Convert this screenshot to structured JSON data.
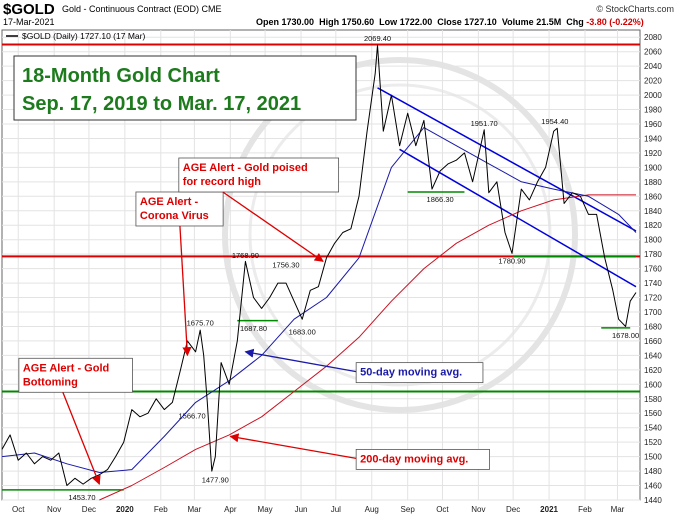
{
  "header": {
    "symbol": "$GOLD",
    "name": "Gold - Continuous Contract (EOD) CME",
    "date": "17-Mar-2021",
    "credit": "© StockCharts.com",
    "open_label": "Open",
    "open": "1730.00",
    "high_label": "High",
    "high": "1750.60",
    "low_label": "Low",
    "low": "1722.00",
    "close_label": "Close",
    "close": "1727.10",
    "volume_label": "Volume",
    "volume": "21.5M",
    "chg_label": "Chg",
    "chg": "-3.80 (-0.22%)"
  },
  "chart_data": {
    "type": "line",
    "legend_text": "$GOLD (Daily) 1727.10 (17 Mar)",
    "title": [
      "18-Month Gold Chart",
      "Sep. 17, 2019 to Mar. 17, 2021"
    ],
    "x_ticks": [
      "Oct",
      "Nov",
      "Dec",
      "2020",
      "Feb",
      "Mar",
      "Apr",
      "May",
      "Jun",
      "Jul",
      "Aug",
      "Sep",
      "Oct",
      "Nov",
      "Dec",
      "2021",
      "Feb",
      "Mar"
    ],
    "ylim": [
      1440,
      2090
    ],
    "y_ticks": [
      1440,
      1460,
      1480,
      1500,
      1520,
      1540,
      1560,
      1580,
      1600,
      1620,
      1640,
      1660,
      1680,
      1700,
      1720,
      1740,
      1760,
      1780,
      1800,
      1820,
      1840,
      1860,
      1880,
      1900,
      1920,
      1940,
      1960,
      1980,
      2000,
      2020,
      2040,
      2060,
      2080
    ],
    "colors": {
      "price": "#000000",
      "ma50": "#1a1aa8",
      "ma200": "#cc1122",
      "resistance": "#dd0000",
      "support": "#008800",
      "channel": "#0000dd",
      "annotation": "#dd0000"
    },
    "price": {
      "name": "$GOLD (Daily)",
      "x": [
        "2019-09-17",
        "2019-09-24",
        "2019-10-01",
        "2019-10-08",
        "2019-10-15",
        "2019-10-22",
        "2019-10-29",
        "2019-11-05",
        "2019-11-12",
        "2019-11-19",
        "2019-11-26",
        "2019-12-03",
        "2019-12-10",
        "2019-12-17",
        "2019-12-24",
        "2019-12-31",
        "2020-01-07",
        "2020-01-14",
        "2020-01-21",
        "2020-01-28",
        "2020-02-04",
        "2020-02-11",
        "2020-02-18",
        "2020-02-24",
        "2020-03-02",
        "2020-03-06",
        "2020-03-09",
        "2020-03-12",
        "2020-03-16",
        "2020-03-19",
        "2020-03-24",
        "2020-03-31",
        "2020-04-07",
        "2020-04-14",
        "2020-04-21",
        "2020-04-28",
        "2020-05-05",
        "2020-05-12",
        "2020-05-19",
        "2020-05-26",
        "2020-06-02",
        "2020-06-09",
        "2020-06-16",
        "2020-06-23",
        "2020-06-30",
        "2020-07-07",
        "2020-07-14",
        "2020-07-21",
        "2020-07-28",
        "2020-08-04",
        "2020-08-06",
        "2020-08-11",
        "2020-08-18",
        "2020-08-25",
        "2020-09-01",
        "2020-09-08",
        "2020-09-15",
        "2020-09-22",
        "2020-09-29",
        "2020-10-06",
        "2020-10-13",
        "2020-10-20",
        "2020-10-27",
        "2020-11-03",
        "2020-11-06",
        "2020-11-10",
        "2020-11-17",
        "2020-11-24",
        "2020-11-30",
        "2020-12-08",
        "2020-12-15",
        "2020-12-22",
        "2020-12-29",
        "2021-01-05",
        "2021-01-08",
        "2021-01-14",
        "2021-01-21",
        "2021-01-28",
        "2021-02-04",
        "2021-02-11",
        "2021-02-18",
        "2021-02-25",
        "2021-03-02",
        "2021-03-08",
        "2021-03-12",
        "2021-03-17"
      ],
      "values": [
        1510,
        1530,
        1495,
        1505,
        1490,
        1500,
        1495,
        1505,
        1460,
        1470,
        1462,
        1470,
        1475,
        1482,
        1500,
        1520,
        1565,
        1555,
        1560,
        1580,
        1565,
        1575,
        1620,
        1660,
        1645,
        1675,
        1640,
        1577,
        1480,
        1500,
        1630,
        1600,
        1660,
        1770,
        1720,
        1705,
        1720,
        1740,
        1740,
        1715,
        1690,
        1730,
        1735,
        1775,
        1795,
        1810,
        1815,
        1860,
        1950,
        2030,
        2069,
        1950,
        2000,
        1930,
        1975,
        1930,
        1965,
        1870,
        1895,
        1905,
        1910,
        1920,
        1880,
        1930,
        1952,
        1865,
        1880,
        1810,
        1781,
        1870,
        1855,
        1880,
        1900,
        1950,
        1954,
        1850,
        1865,
        1860,
        1835,
        1835,
        1775,
        1730,
        1690,
        1680,
        1715,
        1727
      ]
    },
    "ma50": {
      "name": "50-day moving avg.",
      "x": [
        "2019-09-17",
        "2019-10-15",
        "2019-11-12",
        "2019-12-10",
        "2020-01-07",
        "2020-02-04",
        "2020-03-02",
        "2020-03-31",
        "2020-04-28",
        "2020-05-26",
        "2020-06-23",
        "2020-07-21",
        "2020-08-18",
        "2020-09-15",
        "2020-10-13",
        "2020-11-10",
        "2020-12-08",
        "2021-01-05",
        "2021-02-04",
        "2021-03-02",
        "2021-03-17"
      ],
      "values": [
        1500,
        1505,
        1490,
        1478,
        1482,
        1528,
        1575,
        1605,
        1640,
        1690,
        1720,
        1775,
        1900,
        1955,
        1930,
        1905,
        1880,
        1870,
        1860,
        1835,
        1810
      ]
    },
    "ma200": {
      "name": "200-day moving avg.",
      "x": [
        "2019-12-10",
        "2020-01-07",
        "2020-02-04",
        "2020-03-02",
        "2020-03-31",
        "2020-04-28",
        "2020-05-26",
        "2020-06-23",
        "2020-07-21",
        "2020-08-18",
        "2020-09-15",
        "2020-10-13",
        "2020-11-10",
        "2020-12-08",
        "2021-01-05",
        "2021-02-04",
        "2021-03-02",
        "2021-03-17"
      ],
      "values": [
        1440,
        1460,
        1485,
        1510,
        1530,
        1555,
        1590,
        1625,
        1665,
        1715,
        1760,
        1795,
        1820,
        1840,
        1855,
        1862,
        1862,
        1862
      ]
    },
    "h_lines": [
      {
        "name": "resistance-2080",
        "value": 2070,
        "color": "#dd0000"
      },
      {
        "name": "resistance-1775",
        "value": 1777,
        "color": "#dd0000"
      },
      {
        "name": "support-1777",
        "value": 1777,
        "color": "#008800",
        "x_start": "2020-12-01",
        "x_end": "2021-03-17"
      },
      {
        "name": "support-1590",
        "value": 1590,
        "color": "#008800"
      }
    ],
    "support_segments": [
      {
        "value": 1454,
        "x1": "2019-09-17",
        "x2": "2019-12-31"
      },
      {
        "value": 1688,
        "x1": "2020-04-07",
        "x2": "2020-05-12"
      },
      {
        "value": 1866,
        "x1": "2020-09-01",
        "x2": "2020-10-20"
      },
      {
        "value": 1678,
        "x1": "2021-02-15",
        "x2": "2021-03-12"
      }
    ],
    "channel": [
      {
        "x1": "2020-08-06",
        "y1": 2010,
        "x2": "2021-03-17",
        "y2": 1812
      },
      {
        "x1": "2020-08-25",
        "y1": 1925,
        "x2": "2021-03-17",
        "y2": 1735
      }
    ],
    "value_labels": [
      {
        "text": "1453.70",
        "x": "2019-11-25",
        "y": 1453.7,
        "pos": "below"
      },
      {
        "text": "1566.70",
        "x": "2020-02-28",
        "y": 1566.7,
        "pos": "below"
      },
      {
        "text": "1675.70",
        "x": "2020-03-06",
        "y": 1675.7,
        "pos": "above"
      },
      {
        "text": "1477.90",
        "x": "2020-03-19",
        "y": 1477.9,
        "pos": "below"
      },
      {
        "text": "1768.90",
        "x": "2020-04-14",
        "y": 1768.9,
        "pos": "above"
      },
      {
        "text": "1687.80",
        "x": "2020-04-21",
        "y": 1687.8,
        "pos": "below"
      },
      {
        "text": "1756.30",
        "x": "2020-05-19",
        "y": 1756.3,
        "pos": "above"
      },
      {
        "text": "1683.00",
        "x": "2020-06-02",
        "y": 1683.0,
        "pos": "below"
      },
      {
        "text": "2069.40",
        "x": "2020-08-06",
        "y": 2069.4,
        "pos": "above"
      },
      {
        "text": "1866.30",
        "x": "2020-09-29",
        "y": 1866.3,
        "pos": "below"
      },
      {
        "text": "1951.70",
        "x": "2020-11-06",
        "y": 1951.7,
        "pos": "above"
      },
      {
        "text": "1780.90",
        "x": "2020-11-30",
        "y": 1780.9,
        "pos": "below"
      },
      {
        "text": "1954.40",
        "x": "2021-01-06",
        "y": 1954.4,
        "pos": "above"
      },
      {
        "text": "1678.00",
        "x": "2021-03-08",
        "y": 1678.0,
        "pos": "below"
      }
    ],
    "annotations": [
      {
        "name": "annotation-gold-bottoming",
        "lines": [
          "AGE Alert - Gold",
          "Bottoming"
        ],
        "tx": "2019-10-05",
        "ty": 1618,
        "ax": "2019-12-10",
        "ay": 1462
      },
      {
        "name": "annotation-corona-virus",
        "lines": [
          "AGE Alert -",
          "Corona Virus"
        ],
        "tx": "2020-01-14",
        "ty": 1848,
        "ax": "2020-02-24",
        "ay": 1640
      },
      {
        "name": "annotation-record-high",
        "lines": [
          "AGE Alert - Gold poised",
          "for record high"
        ],
        "tx": "2020-02-20",
        "ty": 1895,
        "ax": "2020-06-20",
        "ay": 1770
      },
      {
        "name": "annotation-50-day",
        "lines": [
          "50-day moving avg."
        ],
        "tx": "2020-07-22",
        "ty": 1612,
        "ax": "2020-04-14",
        "ay": 1645,
        "color": "#1a1aa8"
      },
      {
        "name": "annotation-200-day",
        "lines": [
          "200-day moving avg."
        ],
        "tx": "2020-07-22",
        "ty": 1492,
        "ax": "2020-04-01",
        "ay": 1528
      }
    ]
  }
}
